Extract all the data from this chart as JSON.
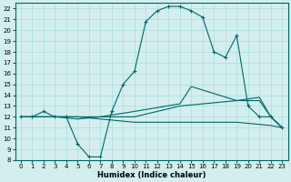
{
  "xlabel": "Humidex (Indice chaleur)",
  "background_color": "#d4eeee",
  "grid_color": "#aadddd",
  "line_color": "#006666",
  "xlim": [
    -0.5,
    23.5
  ],
  "ylim": [
    8,
    22.5
  ],
  "yticks": [
    8,
    9,
    10,
    11,
    12,
    13,
    14,
    15,
    16,
    17,
    18,
    19,
    20,
    21,
    22
  ],
  "xticks": [
    0,
    1,
    2,
    3,
    4,
    5,
    6,
    7,
    8,
    9,
    10,
    11,
    12,
    13,
    14,
    15,
    16,
    17,
    18,
    19,
    20,
    21,
    22,
    23
  ],
  "series1": [
    [
      0,
      12
    ],
    [
      1,
      12
    ],
    [
      2,
      12.5
    ],
    [
      3,
      12
    ],
    [
      4,
      12
    ],
    [
      5,
      9.5
    ],
    [
      6,
      8.3
    ],
    [
      7,
      8.3
    ],
    [
      8,
      12.5
    ],
    [
      9,
      15
    ],
    [
      10,
      16.2
    ],
    [
      11,
      20.8
    ],
    [
      12,
      21.8
    ],
    [
      13,
      22.2
    ],
    [
      14,
      22.2
    ],
    [
      15,
      21.8
    ],
    [
      16,
      21.2
    ],
    [
      17,
      18
    ],
    [
      18,
      17.5
    ],
    [
      19,
      19.5
    ],
    [
      20,
      13
    ],
    [
      21,
      12
    ],
    [
      22,
      12
    ],
    [
      23,
      11
    ]
  ],
  "series2": [
    [
      0,
      12
    ],
    [
      1,
      12
    ],
    [
      3,
      12
    ],
    [
      5,
      11.8
    ],
    [
      7,
      12
    ],
    [
      10,
      12.5
    ],
    [
      14,
      13.2
    ],
    [
      15,
      14.8
    ],
    [
      19,
      13.5
    ],
    [
      21,
      13.5
    ],
    [
      22,
      12
    ],
    [
      23,
      11
    ]
  ],
  "series3": [
    [
      0,
      12
    ],
    [
      3,
      12
    ],
    [
      7,
      12
    ],
    [
      10,
      12
    ],
    [
      14,
      13
    ],
    [
      19,
      13.5
    ],
    [
      21,
      13.8
    ],
    [
      22,
      12
    ],
    [
      23,
      11
    ]
  ],
  "series4": [
    [
      0,
      12
    ],
    [
      5,
      12
    ],
    [
      10,
      11.5
    ],
    [
      14,
      11.5
    ],
    [
      19,
      11.5
    ],
    [
      22,
      11.2
    ],
    [
      23,
      11
    ]
  ]
}
